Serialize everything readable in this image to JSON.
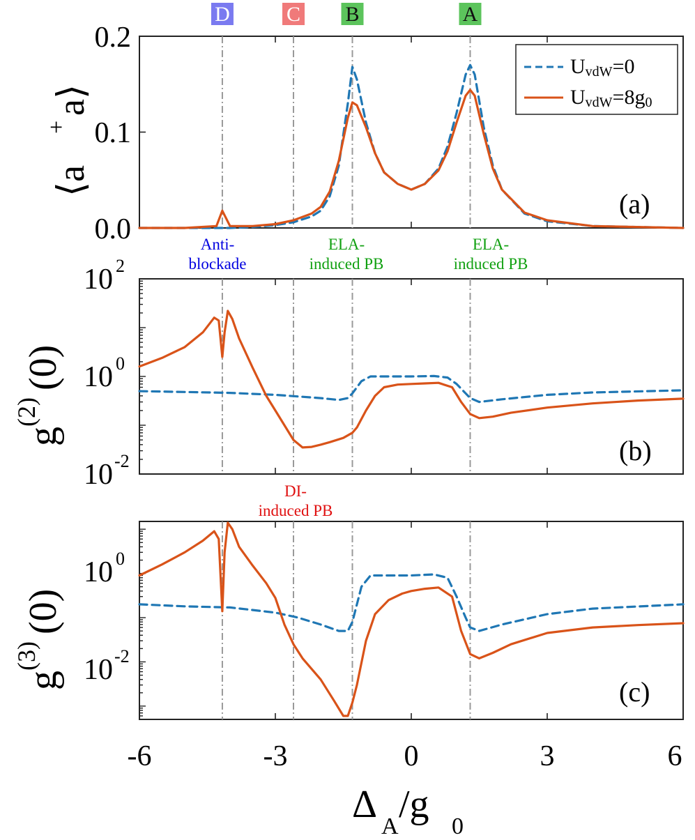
{
  "chart_data": [
    {
      "panel": "(a)",
      "type": "line",
      "ylabel": "⟨a⁺a⟩",
      "xlim": [
        -6,
        6
      ],
      "ylim": [
        0,
        0.2
      ],
      "yscale": "linear",
      "ytick_labels": [
        "0.0",
        "0.1",
        "0.2"
      ],
      "legend": {
        "placement": "top-right",
        "entries": [
          "U_vdW=0",
          "U_vdW=8g_0"
        ]
      },
      "series": [
        {
          "name": "U_vdW=0",
          "style": "dashed",
          "color": "#1f77b4",
          "x": [
            -6.0,
            -5.0,
            -4.3,
            -4.17,
            -4.0,
            -3.5,
            -3.0,
            -2.6,
            -2.2,
            -2.0,
            -1.8,
            -1.6,
            -1.4,
            -1.3,
            -1.2,
            -1.0,
            -0.8,
            -0.6,
            -0.3,
            0.0,
            0.3,
            0.6,
            0.8,
            1.0,
            1.2,
            1.3,
            1.4,
            1.6,
            1.8,
            2.0,
            2.5,
            3.0,
            4.0,
            6.0
          ],
          "y": [
            0.0,
            0.0,
            0.0,
            0.0,
            0.0,
            0.001,
            0.003,
            0.006,
            0.012,
            0.018,
            0.033,
            0.065,
            0.13,
            0.168,
            0.155,
            0.11,
            0.078,
            0.058,
            0.046,
            0.04,
            0.046,
            0.062,
            0.085,
            0.12,
            0.16,
            0.17,
            0.16,
            0.105,
            0.065,
            0.04,
            0.015,
            0.007,
            0.002,
            0.0
          ]
        },
        {
          "name": "U_vdW=8g_0",
          "style": "solid",
          "color": "#d95319",
          "x": [
            -6.0,
            -5.0,
            -4.3,
            -4.17,
            -4.0,
            -3.5,
            -3.0,
            -2.6,
            -2.2,
            -2.0,
            -1.8,
            -1.6,
            -1.4,
            -1.3,
            -1.2,
            -1.0,
            -0.8,
            -0.6,
            -0.3,
            0.0,
            0.3,
            0.6,
            0.8,
            1.0,
            1.2,
            1.3,
            1.4,
            1.6,
            1.8,
            2.0,
            2.5,
            3.0,
            4.0,
            6.0
          ],
          "y": [
            0.0,
            0.0,
            0.002,
            0.018,
            0.002,
            0.002,
            0.004,
            0.008,
            0.015,
            0.022,
            0.038,
            0.07,
            0.115,
            0.131,
            0.128,
            0.105,
            0.078,
            0.058,
            0.046,
            0.04,
            0.046,
            0.06,
            0.08,
            0.11,
            0.138,
            0.144,
            0.138,
            0.098,
            0.062,
            0.04,
            0.016,
            0.008,
            0.002,
            0.0
          ]
        }
      ]
    },
    {
      "panel": "(b)",
      "type": "line",
      "ylabel": "g⁽²⁾(0)",
      "xlim": [
        -6,
        6
      ],
      "ylim": [
        0.01,
        100
      ],
      "yscale": "log",
      "ytick_labels": [
        "10^-2",
        "10^0",
        "10^2"
      ],
      "series": [
        {
          "name": "U_vdW=0",
          "style": "dashed",
          "color": "#1f77b4",
          "x": [
            -6.0,
            -5.0,
            -4.0,
            -3.0,
            -2.0,
            -1.6,
            -1.4,
            -1.3,
            -1.1,
            -0.9,
            -0.5,
            0.0,
            0.5,
            0.8,
            1.0,
            1.2,
            1.3,
            1.5,
            2.0,
            3.0,
            4.0,
            6.0
          ],
          "y": [
            0.5,
            0.48,
            0.46,
            0.42,
            0.36,
            0.33,
            0.36,
            0.45,
            0.8,
            1.0,
            1.0,
            1.0,
            1.02,
            0.95,
            0.7,
            0.45,
            0.36,
            0.3,
            0.34,
            0.42,
            0.47,
            0.52
          ]
        },
        {
          "name": "U_vdW=8g_0",
          "style": "solid",
          "color": "#d95319",
          "x": [
            -6.0,
            -5.5,
            -5.0,
            -4.6,
            -4.35,
            -4.25,
            -4.17,
            -4.12,
            -4.05,
            -3.95,
            -3.8,
            -3.5,
            -3.2,
            -3.0,
            -2.8,
            -2.6,
            -2.4,
            -2.2,
            -2.0,
            -1.8,
            -1.5,
            -1.3,
            -1.2,
            -1.0,
            -0.8,
            -0.6,
            -0.3,
            0.0,
            0.3,
            0.6,
            0.9,
            1.1,
            1.3,
            1.5,
            1.8,
            2.2,
            3.0,
            4.0,
            5.0,
            6.0
          ],
          "y": [
            1.6,
            2.4,
            4.0,
            8.0,
            16.0,
            14.0,
            2.5,
            8.0,
            22.0,
            15.0,
            6.0,
            1.5,
            0.4,
            0.2,
            0.1,
            0.05,
            0.035,
            0.036,
            0.04,
            0.045,
            0.055,
            0.07,
            0.09,
            0.2,
            0.4,
            0.6,
            0.68,
            0.7,
            0.72,
            0.74,
            0.6,
            0.3,
            0.17,
            0.14,
            0.15,
            0.18,
            0.23,
            0.28,
            0.32,
            0.35
          ]
        }
      ]
    },
    {
      "panel": "(c)",
      "type": "line",
      "ylabel": "g⁽³⁾(0)",
      "xlabel": "Δ_A/g_0",
      "xlim": [
        -6,
        6
      ],
      "ylim": [
        0.0005,
        15
      ],
      "yscale": "log",
      "ytick_labels": [
        "10^-2",
        "10^0"
      ],
      "xtick_labels": [
        "-6",
        "-3",
        "0",
        "3",
        "6"
      ],
      "series": [
        {
          "name": "U_vdW=0",
          "style": "dashed",
          "color": "#1f77b4",
          "x": [
            -6.0,
            -5.0,
            -4.0,
            -3.0,
            -2.5,
            -2.0,
            -1.6,
            -1.4,
            -1.3,
            -1.1,
            -0.9,
            -0.5,
            0.0,
            0.5,
            0.8,
            1.0,
            1.2,
            1.3,
            1.5,
            2.0,
            3.0,
            4.0,
            6.0
          ],
          "y": [
            0.2,
            0.18,
            0.17,
            0.13,
            0.1,
            0.07,
            0.05,
            0.05,
            0.08,
            0.5,
            0.9,
            0.9,
            0.9,
            0.95,
            0.8,
            0.3,
            0.1,
            0.06,
            0.05,
            0.07,
            0.12,
            0.16,
            0.2
          ]
        },
        {
          "name": "U_vdW=8g_0",
          "style": "solid",
          "color": "#d95319",
          "x": [
            -6.0,
            -5.5,
            -5.0,
            -4.6,
            -4.35,
            -4.25,
            -4.17,
            -4.12,
            -4.05,
            -3.95,
            -3.8,
            -3.5,
            -3.2,
            -3.0,
            -2.8,
            -2.6,
            -2.4,
            -2.0,
            -1.7,
            -1.5,
            -1.4,
            -1.3,
            -1.2,
            -1.0,
            -0.8,
            -0.5,
            -0.2,
            0.0,
            0.3,
            0.6,
            0.9,
            1.1,
            1.3,
            1.5,
            1.8,
            2.2,
            3.0,
            4.0,
            5.0,
            6.0
          ],
          "y": [
            0.9,
            1.6,
            3.0,
            5.5,
            9.0,
            6.0,
            0.14,
            3.0,
            14.0,
            10.0,
            4.0,
            1.5,
            0.6,
            0.28,
            0.07,
            0.025,
            0.012,
            0.004,
            0.0013,
            0.0006,
            0.0006,
            0.0012,
            0.003,
            0.03,
            0.12,
            0.25,
            0.35,
            0.4,
            0.45,
            0.48,
            0.3,
            0.05,
            0.015,
            0.012,
            0.016,
            0.025,
            0.045,
            0.06,
            0.068,
            0.075
          ]
        }
      ]
    }
  ],
  "markers": [
    {
      "label": "D",
      "x": -4.17,
      "color": "#7a7af0"
    },
    {
      "label": "C",
      "x": -2.6,
      "color": "#f07a7a"
    },
    {
      "label": "B",
      "x": -1.3,
      "color": "#5cc45c"
    },
    {
      "label": "A",
      "x": 1.3,
      "color": "#5cc45c"
    }
  ],
  "annotations": {
    "anti_blockade_line1": "Anti-",
    "anti_blockade_line2": "blockade",
    "ela_b_line1": "ELA-",
    "ela_b_line2": "induced PB",
    "ela_a_line1": "ELA-",
    "ela_a_line2": "induced PB",
    "di_line1": "DI-",
    "di_line2": "induced PB",
    "anti_color": "#0000e0",
    "ela_color": "#10a010",
    "di_color": "#e01010"
  },
  "panel_labels": {
    "a": "(a)",
    "b": "(b)",
    "c": "(c)"
  },
  "legend_text": {
    "row1_u": "U",
    "row1_sub": "vdW",
    "row1_rest": "=0",
    "row2_u": "U",
    "row2_sub": "vdW",
    "row2_rest": "=8g",
    "row2_sub2": "0"
  },
  "axis_text": {
    "a_ylabel_left": "⟨a",
    "a_ylabel_sup": "+",
    "a_ylabel_right": "a⟩",
    "b_ylabel_g": "g",
    "b_ylabel_sup": "(2)",
    "b_ylabel_rest": "(0)",
    "c_ylabel_g": "g",
    "c_ylabel_sup": "(3)",
    "c_ylabel_rest": "(0)",
    "xlabel_delta": "Δ",
    "xlabel_sub_a": "A",
    "xlabel_slash": "/g",
    "xlabel_sub_0": "0",
    "ytick_a": [
      "0.0",
      "0.1",
      "0.2"
    ],
    "ytick_b_base": "10",
    "ytick_b_exp": [
      "-2",
      "0",
      "2"
    ],
    "ytick_c_base": "10",
    "ytick_c_exp": [
      "-2",
      "0"
    ],
    "xticks": [
      "-6",
      "-3",
      "0",
      "3",
      "6"
    ]
  },
  "colors": {
    "dashed_series": "#1f77b4",
    "solid_series": "#d95319",
    "marker_line": "#999999"
  }
}
